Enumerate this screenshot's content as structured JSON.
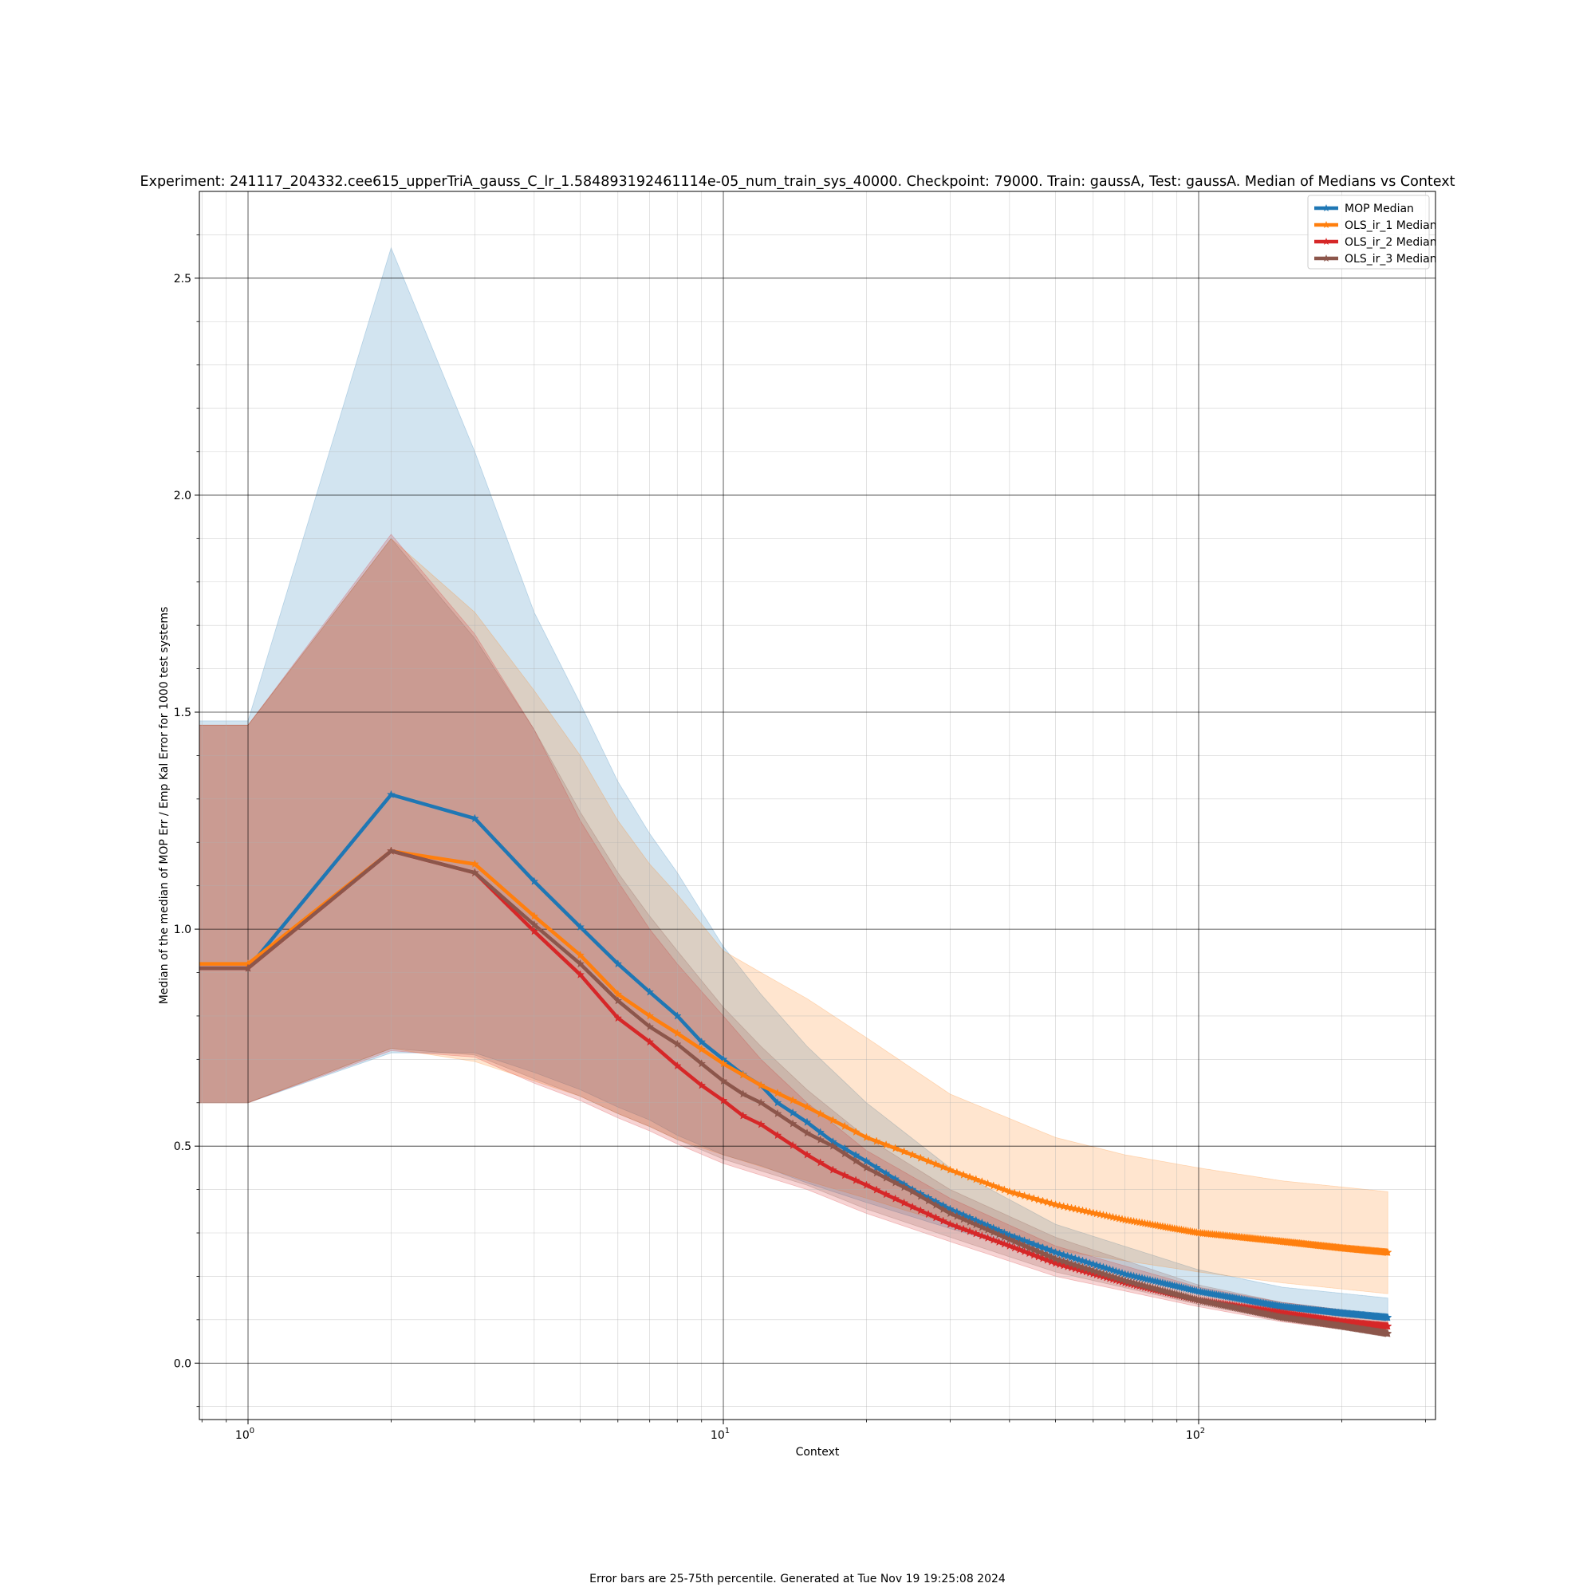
{
  "chart_data": {
    "type": "line",
    "title": "Experiment: 241117_204332.cee615_upperTriA_gauss_C_lr_1.584893192461114e-05_num_train_sys_40000. Checkpoint: 79000. Train: gaussA, Test: gaussA. Median of Medians vs Context",
    "xlabel": "Context",
    "ylabel": "Median of the median of MOP Err / Emp Kal Error for 1000 test systems",
    "x_scale": "log",
    "xlim": [
      0.79,
      315
    ],
    "ylim": [
      -0.13,
      2.7
    ],
    "x_ticks": [
      {
        "value": 1,
        "base": "10",
        "exp": "0"
      },
      {
        "value": 10,
        "base": "10",
        "exp": "1"
      },
      {
        "value": 100,
        "base": "10",
        "exp": "2"
      }
    ],
    "y_ticks": [
      "0.0",
      "0.5",
      "1.0",
      "1.5",
      "2.0",
      "2.5"
    ],
    "y_tick_values": [
      0.0,
      0.5,
      1.0,
      1.5,
      2.0,
      2.5
    ],
    "grid": true,
    "legend_position": "upper right",
    "footnote": "Error bars are 25-75th percentile. Generated at Tue Nov 19 19:25:08 2024",
    "shading": "25-75th percentile band per series",
    "series": [
      {
        "name": "MOP Median",
        "color": "#1f77b4",
        "median": [
          [
            0.79,
            0.91
          ],
          [
            1,
            0.91
          ],
          [
            2,
            1.31
          ],
          [
            3,
            1.255
          ],
          [
            4,
            1.11
          ],
          [
            5,
            1.005
          ],
          [
            6,
            0.92
          ],
          [
            7,
            0.855
          ],
          [
            8,
            0.8
          ],
          [
            9,
            0.74
          ],
          [
            10,
            0.7
          ],
          [
            11,
            0.665
          ],
          [
            12,
            0.64
          ],
          [
            13,
            0.6
          ],
          [
            15,
            0.555
          ],
          [
            17,
            0.51
          ],
          [
            20,
            0.465
          ],
          [
            25,
            0.4
          ],
          [
            30,
            0.355
          ],
          [
            40,
            0.295
          ],
          [
            50,
            0.255
          ],
          [
            70,
            0.205
          ],
          [
            100,
            0.165
          ],
          [
            150,
            0.13
          ],
          [
            200,
            0.115
          ],
          [
            250,
            0.105
          ]
        ],
        "q25": [
          [
            0.79,
            0.6
          ],
          [
            1,
            0.6
          ],
          [
            2,
            0.715
          ],
          [
            3,
            0.715
          ],
          [
            4,
            0.67
          ],
          [
            5,
            0.63
          ],
          [
            6,
            0.59
          ],
          [
            7,
            0.56
          ],
          [
            8,
            0.525
          ],
          [
            10,
            0.48
          ],
          [
            12,
            0.455
          ],
          [
            15,
            0.415
          ],
          [
            20,
            0.37
          ],
          [
            30,
            0.31
          ],
          [
            50,
            0.24
          ],
          [
            100,
            0.165
          ],
          [
            150,
            0.135
          ],
          [
            250,
            0.11
          ]
        ],
        "q75": [
          [
            0.79,
            1.48
          ],
          [
            1,
            1.48
          ],
          [
            2,
            2.57
          ],
          [
            3,
            2.1
          ],
          [
            4,
            1.73
          ],
          [
            5,
            1.52
          ],
          [
            6,
            1.34
          ],
          [
            7,
            1.22
          ],
          [
            8,
            1.13
          ],
          [
            10,
            0.96
          ],
          [
            12,
            0.85
          ],
          [
            15,
            0.73
          ],
          [
            20,
            0.6
          ],
          [
            30,
            0.45
          ],
          [
            50,
            0.32
          ],
          [
            100,
            0.215
          ],
          [
            150,
            0.175
          ],
          [
            250,
            0.15
          ]
        ]
      },
      {
        "name": "OLS_ir_1 Median",
        "color": "#ff7f0e",
        "median": [
          [
            0.79,
            0.92
          ],
          [
            1,
            0.92
          ],
          [
            2,
            1.18
          ],
          [
            3,
            1.15
          ],
          [
            4,
            1.03
          ],
          [
            5,
            0.94
          ],
          [
            6,
            0.85
          ],
          [
            7,
            0.8
          ],
          [
            8,
            0.76
          ],
          [
            10,
            0.69
          ],
          [
            12,
            0.64
          ],
          [
            15,
            0.59
          ],
          [
            20,
            0.52
          ],
          [
            25,
            0.48
          ],
          [
            30,
            0.445
          ],
          [
            40,
            0.395
          ],
          [
            50,
            0.365
          ],
          [
            70,
            0.33
          ],
          [
            100,
            0.3
          ],
          [
            150,
            0.28
          ],
          [
            200,
            0.265
          ],
          [
            250,
            0.255
          ]
        ],
        "q25": [
          [
            0.79,
            0.6
          ],
          [
            1,
            0.6
          ],
          [
            2,
            0.725
          ],
          [
            3,
            0.695
          ],
          [
            4,
            0.65
          ],
          [
            5,
            0.615
          ],
          [
            6,
            0.575
          ],
          [
            7,
            0.545
          ],
          [
            8,
            0.515
          ],
          [
            10,
            0.48
          ],
          [
            15,
            0.42
          ],
          [
            20,
            0.38
          ],
          [
            30,
            0.32
          ],
          [
            50,
            0.26
          ],
          [
            100,
            0.21
          ],
          [
            150,
            0.185
          ],
          [
            250,
            0.16
          ]
        ],
        "q75": [
          [
            0.79,
            1.47
          ],
          [
            1,
            1.47
          ],
          [
            2,
            1.9
          ],
          [
            3,
            1.73
          ],
          [
            4,
            1.55
          ],
          [
            5,
            1.4
          ],
          [
            6,
            1.25
          ],
          [
            7,
            1.15
          ],
          [
            8,
            1.08
          ],
          [
            10,
            0.95
          ],
          [
            12,
            0.9
          ],
          [
            15,
            0.84
          ],
          [
            20,
            0.75
          ],
          [
            30,
            0.62
          ],
          [
            50,
            0.52
          ],
          [
            70,
            0.48
          ],
          [
            100,
            0.45
          ],
          [
            150,
            0.42
          ],
          [
            250,
            0.395
          ]
        ]
      },
      {
        "name": "OLS_ir_2 Median",
        "color": "#d62728",
        "median": [
          [
            0.79,
            0.91
          ],
          [
            1,
            0.91
          ],
          [
            2,
            1.18
          ],
          [
            3,
            1.13
          ],
          [
            4,
            0.995
          ],
          [
            5,
            0.895
          ],
          [
            6,
            0.795
          ],
          [
            7,
            0.74
          ],
          [
            8,
            0.685
          ],
          [
            9,
            0.64
          ],
          [
            10,
            0.605
          ],
          [
            11,
            0.57
          ],
          [
            12,
            0.55
          ],
          [
            15,
            0.48
          ],
          [
            17,
            0.445
          ],
          [
            20,
            0.41
          ],
          [
            25,
            0.36
          ],
          [
            30,
            0.32
          ],
          [
            40,
            0.27
          ],
          [
            50,
            0.23
          ],
          [
            70,
            0.185
          ],
          [
            100,
            0.145
          ],
          [
            150,
            0.115
          ],
          [
            200,
            0.095
          ],
          [
            250,
            0.085
          ]
        ],
        "q25": [
          [
            0.79,
            0.6
          ],
          [
            1,
            0.6
          ],
          [
            2,
            0.72
          ],
          [
            3,
            0.705
          ],
          [
            4,
            0.645
          ],
          [
            5,
            0.605
          ],
          [
            6,
            0.565
          ],
          [
            7,
            0.535
          ],
          [
            8,
            0.505
          ],
          [
            10,
            0.46
          ],
          [
            15,
            0.4
          ],
          [
            20,
            0.345
          ],
          [
            30,
            0.28
          ],
          [
            50,
            0.2
          ],
          [
            100,
            0.13
          ],
          [
            150,
            0.095
          ],
          [
            250,
            0.065
          ]
        ],
        "q75": [
          [
            0.79,
            1.47
          ],
          [
            1,
            1.47
          ],
          [
            2,
            1.91
          ],
          [
            3,
            1.68
          ],
          [
            4,
            1.46
          ],
          [
            5,
            1.25
          ],
          [
            6,
            1.11
          ],
          [
            7,
            1.0
          ],
          [
            8,
            0.92
          ],
          [
            10,
            0.8
          ],
          [
            12,
            0.7
          ],
          [
            15,
            0.6
          ],
          [
            20,
            0.49
          ],
          [
            30,
            0.38
          ],
          [
            50,
            0.27
          ],
          [
            100,
            0.175
          ],
          [
            150,
            0.14
          ],
          [
            250,
            0.11
          ]
        ]
      },
      {
        "name": "OLS_ir_3 Median",
        "color": "#8c564b",
        "median": [
          [
            0.79,
            0.91
          ],
          [
            1,
            0.91
          ],
          [
            2,
            1.18
          ],
          [
            3,
            1.13
          ],
          [
            4,
            1.01
          ],
          [
            5,
            0.92
          ],
          [
            6,
            0.835
          ],
          [
            7,
            0.775
          ],
          [
            8,
            0.735
          ],
          [
            9,
            0.69
          ],
          [
            10,
            0.65
          ],
          [
            11,
            0.62
          ],
          [
            12,
            0.6
          ],
          [
            15,
            0.53
          ],
          [
            17,
            0.5
          ],
          [
            20,
            0.45
          ],
          [
            25,
            0.395
          ],
          [
            30,
            0.345
          ],
          [
            40,
            0.285
          ],
          [
            50,
            0.24
          ],
          [
            70,
            0.19
          ],
          [
            100,
            0.145
          ],
          [
            150,
            0.105
          ],
          [
            200,
            0.085
          ],
          [
            250,
            0.068
          ]
        ],
        "q25": [
          [
            0.79,
            0.6
          ],
          [
            1,
            0.6
          ],
          [
            2,
            0.725
          ],
          [
            3,
            0.71
          ],
          [
            4,
            0.655
          ],
          [
            5,
            0.615
          ],
          [
            6,
            0.575
          ],
          [
            7,
            0.545
          ],
          [
            8,
            0.515
          ],
          [
            10,
            0.47
          ],
          [
            15,
            0.41
          ],
          [
            20,
            0.355
          ],
          [
            30,
            0.29
          ],
          [
            50,
            0.21
          ],
          [
            100,
            0.135
          ],
          [
            150,
            0.1
          ],
          [
            250,
            0.07
          ]
        ],
        "q75": [
          [
            0.79,
            1.47
          ],
          [
            1,
            1.47
          ],
          [
            2,
            1.9
          ],
          [
            3,
            1.67
          ],
          [
            4,
            1.46
          ],
          [
            5,
            1.27
          ],
          [
            6,
            1.13
          ],
          [
            7,
            1.03
          ],
          [
            8,
            0.95
          ],
          [
            10,
            0.82
          ],
          [
            12,
            0.73
          ],
          [
            15,
            0.63
          ],
          [
            20,
            0.52
          ],
          [
            30,
            0.4
          ],
          [
            50,
            0.29
          ],
          [
            100,
            0.18
          ],
          [
            150,
            0.14
          ],
          [
            250,
            0.11
          ]
        ]
      }
    ]
  }
}
